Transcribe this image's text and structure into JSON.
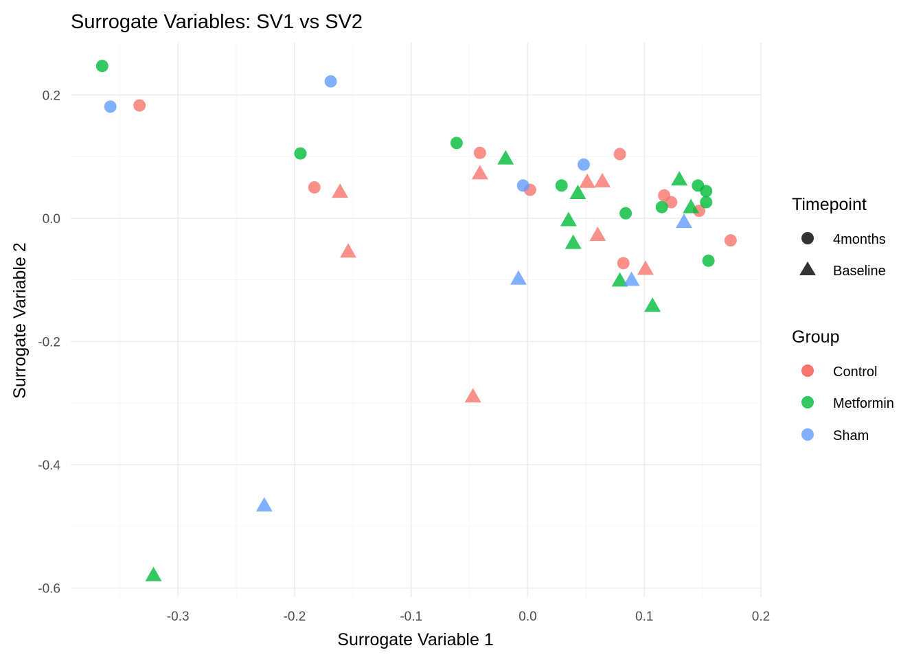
{
  "chart_data": {
    "type": "scatter",
    "title": "Surrogate Variables: SV1 vs SV2",
    "xlabel": "Surrogate Variable 1",
    "ylabel": "Surrogate Variable 2",
    "xlim": [
      -0.392,
      0.2
    ],
    "ylim": [
      -0.615,
      0.285
    ],
    "xticks": [
      -0.3,
      -0.2,
      -0.1,
      0.0,
      0.1,
      0.2
    ],
    "xtick_labels": [
      "-0.3",
      "-0.2",
      "-0.1",
      "0.0",
      "0.1",
      "0.2"
    ],
    "yticks": [
      0.2,
      0.0,
      -0.2,
      -0.4,
      -0.6
    ],
    "ytick_labels": [
      "0.2",
      "0.0",
      "-0.2",
      "-0.4",
      "-0.6"
    ],
    "grid": true,
    "legend_position": "right",
    "legends": [
      {
        "title": "Timepoint",
        "entries": [
          {
            "label": "4months",
            "shape": "circle"
          },
          {
            "label": "Baseline",
            "shape": "triangle"
          }
        ]
      },
      {
        "title": "Group",
        "entries": [
          {
            "label": "Control",
            "color": "#F8766D"
          },
          {
            "label": "Metformin",
            "color": "#00BA38"
          },
          {
            "label": "Sham",
            "color": "#619CFF"
          }
        ]
      }
    ],
    "series": [
      {
        "name": "Control",
        "shape": "circle",
        "color": "#F8766D",
        "timepoint": "4months",
        "points": [
          [
            -0.333,
            0.183
          ],
          [
            -0.183,
            0.05
          ],
          [
            -0.041,
            0.106
          ],
          [
            0.002,
            0.046
          ],
          [
            0.079,
            0.104
          ],
          [
            0.082,
            -0.073
          ],
          [
            0.117,
            0.037
          ],
          [
            0.123,
            0.026
          ],
          [
            0.147,
            0.012
          ],
          [
            0.174,
            -0.036
          ]
        ]
      },
      {
        "name": "Metformin",
        "shape": "circle",
        "color": "#00BA38",
        "timepoint": "4months",
        "points": [
          [
            -0.365,
            0.247
          ],
          [
            -0.195,
            0.105
          ],
          [
            -0.061,
            0.122
          ],
          [
            0.029,
            0.053
          ],
          [
            0.084,
            0.008
          ],
          [
            0.115,
            0.018
          ],
          [
            0.146,
            0.053
          ],
          [
            0.153,
            0.044
          ],
          [
            0.153,
            0.026
          ],
          [
            0.155,
            -0.069
          ]
        ]
      },
      {
        "name": "Sham",
        "shape": "circle",
        "color": "#619CFF",
        "timepoint": "4months",
        "points": [
          [
            -0.358,
            0.181
          ],
          [
            -0.169,
            0.222
          ],
          [
            -0.004,
            0.053
          ],
          [
            0.048,
            0.087
          ]
        ]
      },
      {
        "name": "Control",
        "shape": "triangle",
        "color": "#F8766D",
        "timepoint": "Baseline",
        "points": [
          [
            -0.161,
            0.042
          ],
          [
            -0.154,
            -0.055
          ],
          [
            -0.041,
            0.072
          ],
          [
            -0.047,
            -0.29
          ],
          [
            0.051,
            0.058
          ],
          [
            0.064,
            0.059
          ],
          [
            0.06,
            -0.028
          ],
          [
            0.101,
            -0.083
          ]
        ]
      },
      {
        "name": "Metformin",
        "shape": "triangle",
        "color": "#00BA38",
        "timepoint": "Baseline",
        "points": [
          [
            -0.019,
            0.096
          ],
          [
            0.035,
            -0.004
          ],
          [
            0.043,
            0.04
          ],
          [
            0.039,
            -0.041
          ],
          [
            0.079,
            -0.102
          ],
          [
            0.107,
            -0.143
          ],
          [
            0.13,
            0.062
          ],
          [
            0.14,
            0.017
          ],
          [
            -0.321,
            -0.58
          ]
        ]
      },
      {
        "name": "Sham",
        "shape": "triangle",
        "color": "#619CFF",
        "timepoint": "Baseline",
        "points": [
          [
            -0.226,
            -0.467
          ],
          [
            -0.008,
            -0.099
          ],
          [
            0.089,
            -0.101
          ],
          [
            0.134,
            -0.007
          ]
        ]
      }
    ]
  }
}
